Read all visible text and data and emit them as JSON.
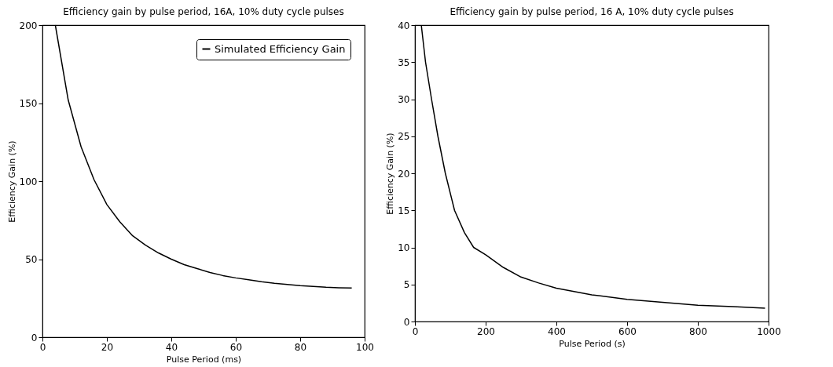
{
  "chart_data": [
    {
      "type": "line",
      "title": "Efficiency gain by pulse period, 16A, 10% duty cycle pulses",
      "xlabel": "Pulse Period (ms)",
      "ylabel": "Efficiency Gain (%)",
      "xlim": [
        0,
        100
      ],
      "xticks": [
        0,
        20,
        40,
        60,
        80,
        100
      ],
      "ylim": [
        0,
        200
      ],
      "yticks": [
        0,
        50,
        100,
        150,
        200
      ],
      "grid": false,
      "legend": "top right",
      "x": [
        4,
        8,
        12,
        16,
        20,
        24,
        28,
        32,
        36,
        40,
        44,
        48,
        52,
        56,
        60,
        64,
        68,
        72,
        76,
        80,
        84,
        88,
        92,
        96
      ],
      "series": [
        {
          "name": "Simulated Efficiency Gain",
          "color": "#000000",
          "values": [
            200,
            152,
            122,
            101,
            85,
            74,
            65,
            59,
            54,
            50,
            46.5,
            44,
            41.5,
            39.5,
            38,
            36.8,
            35.5,
            34.5,
            33.8,
            33,
            32.5,
            32,
            31.7,
            31.5
          ]
        }
      ]
    },
    {
      "type": "line",
      "title": "Efficiency gain by pulse period, 16 A, 10% duty cycle pulses",
      "xlabel": "Pulse Period (s)",
      "ylabel": "Efficiency Gain (%)",
      "xlim": [
        0,
        1000
      ],
      "xticks": [
        0,
        200,
        400,
        600,
        800,
        1000
      ],
      "ylim": [
        0,
        40
      ],
      "yticks": [
        0,
        5,
        10,
        15,
        20,
        25,
        30,
        35,
        40
      ],
      "grid": false,
      "x": [
        18,
        30,
        47,
        65,
        86,
        112,
        140,
        166,
        200,
        250,
        300,
        350,
        400,
        500,
        600,
        700,
        800,
        900,
        990
      ],
      "series": [
        {
          "color": "#000000",
          "values": [
            40,
            35,
            30,
            25,
            20,
            15,
            12,
            10,
            9,
            7.3,
            6,
            5.2,
            4.5,
            3.6,
            3,
            2.6,
            2.2,
            2,
            1.8
          ]
        }
      ]
    }
  ]
}
